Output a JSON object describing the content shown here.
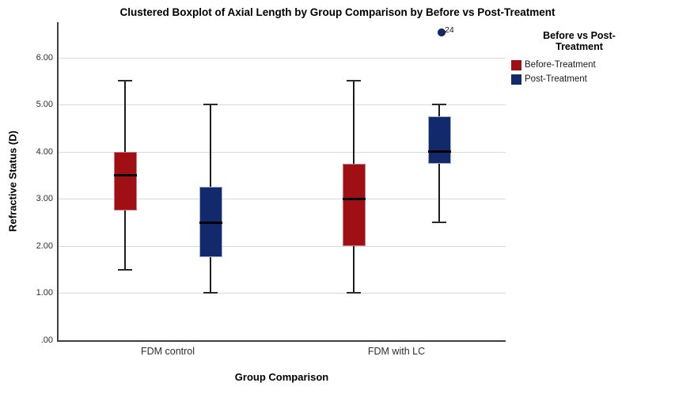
{
  "title": "Clustered Boxplot of Axial Length by Group Comparison by Before vs Post-Treatment",
  "chart_data": {
    "type": "boxplot",
    "title": "Clustered Boxplot of Axial Length by Group Comparison by Before vs Post-Treatment",
    "xlabel": "Group Comparison",
    "ylabel": "Refractive Status (D)",
    "categories": [
      "FDM control",
      "FDM with LC"
    ],
    "ylim": [
      0,
      6.75
    ],
    "yticks": [
      ".00",
      "1.00",
      "2.00",
      "3.00",
      "4.00",
      "5.00",
      "6.00"
    ],
    "ytick_values": [
      0,
      1,
      2,
      3,
      4,
      5,
      6
    ],
    "grid": true,
    "legend_position": "right",
    "legend": {
      "title_lines": [
        "Before vs Post-",
        "Treatment"
      ]
    },
    "series": [
      {
        "name": "Before-Treatment",
        "color": "#a00f14",
        "border_color": "#c97b7b",
        "boxes": [
          {
            "category": "FDM control",
            "min": 1.5,
            "q1": 2.75,
            "median": 3.5,
            "q3": 4.0,
            "max": 5.5,
            "outliers": []
          },
          {
            "category": "FDM with LC",
            "min": 1.0,
            "q1": 2.0,
            "median": 3.0,
            "q3": 3.75,
            "max": 5.5,
            "outliers": []
          }
        ]
      },
      {
        "name": "Post-Treatment",
        "color": "#12296b",
        "border_color": "#9fb0d8",
        "boxes": [
          {
            "category": "FDM control",
            "min": 1.0,
            "q1": 1.75,
            "median": 2.5,
            "q3": 3.25,
            "max": 5.0,
            "outliers": []
          },
          {
            "category": "FDM with LC",
            "min": 2.5,
            "q1": 3.75,
            "median": 4.0,
            "q3": 4.75,
            "max": 5.0,
            "outliers": [
              {
                "value": 6.55,
                "label": "24"
              }
            ]
          }
        ]
      }
    ]
  }
}
